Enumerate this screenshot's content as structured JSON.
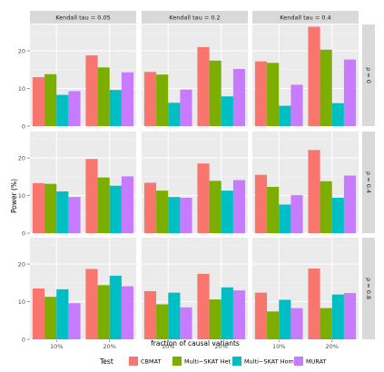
{
  "chart_data": {
    "type": "bar",
    "xlabel": "fraction of causal variants",
    "ylabel": "Power (%)",
    "x_categories": [
      "10%",
      "20%"
    ],
    "col_facets": [
      "Kendall tau = 0.05",
      "Kendall tau = 0.2",
      "Kendall tau = 0.4"
    ],
    "row_facets": [
      "ρ = 0",
      "ρ = 0.4",
      "ρ = 0.8"
    ],
    "ylim": [
      0,
      27
    ],
    "yticks": [
      0,
      10,
      20
    ],
    "legend_title": "Test",
    "legend_position": "bottom",
    "grid": true,
    "series": [
      {
        "name": "CBMAT",
        "color": "#F8766D"
      },
      {
        "name": "Multi−SKAT Het",
        "color": "#7CAE00"
      },
      {
        "name": "Multi−SKAT Hom",
        "color": "#00BFC4"
      },
      {
        "name": "MURAT",
        "color": "#C77CFF"
      }
    ],
    "panels": [
      {
        "row": 0,
        "col": 0,
        "values": [
          [
            13.0,
            13.8,
            8.3,
            9.3
          ],
          [
            18.8,
            15.6,
            9.6,
            14.3
          ]
        ]
      },
      {
        "row": 0,
        "col": 1,
        "values": [
          [
            14.4,
            13.7,
            6.2,
            9.7
          ],
          [
            21.0,
            17.4,
            7.9,
            15.2
          ]
        ]
      },
      {
        "row": 0,
        "col": 2,
        "values": [
          [
            17.2,
            16.8,
            5.4,
            11.0
          ],
          [
            26.4,
            20.3,
            6.1,
            17.7
          ]
        ]
      },
      {
        "row": 1,
        "col": 0,
        "values": [
          [
            13.3,
            13.1,
            11.1,
            9.6
          ],
          [
            19.7,
            14.8,
            12.6,
            15.1
          ]
        ]
      },
      {
        "row": 1,
        "col": 1,
        "values": [
          [
            13.4,
            11.3,
            9.6,
            9.4
          ],
          [
            18.5,
            13.9,
            11.3,
            14.1
          ]
        ]
      },
      {
        "row": 1,
        "col": 2,
        "values": [
          [
            15.5,
            12.3,
            7.6,
            10.1
          ],
          [
            22.1,
            13.8,
            9.4,
            15.3
          ]
        ]
      },
      {
        "row": 2,
        "col": 0,
        "values": [
          [
            13.5,
            11.3,
            13.3,
            9.6
          ],
          [
            18.7,
            14.4,
            16.9,
            14.1
          ]
        ]
      },
      {
        "row": 2,
        "col": 1,
        "values": [
          [
            12.8,
            9.3,
            12.4,
            8.5
          ],
          [
            17.4,
            10.6,
            13.8,
            13.0
          ]
        ]
      },
      {
        "row": 2,
        "col": 2,
        "values": [
          [
            12.4,
            7.4,
            10.5,
            8.3
          ],
          [
            18.8,
            8.3,
            11.9,
            12.3
          ]
        ]
      }
    ]
  }
}
